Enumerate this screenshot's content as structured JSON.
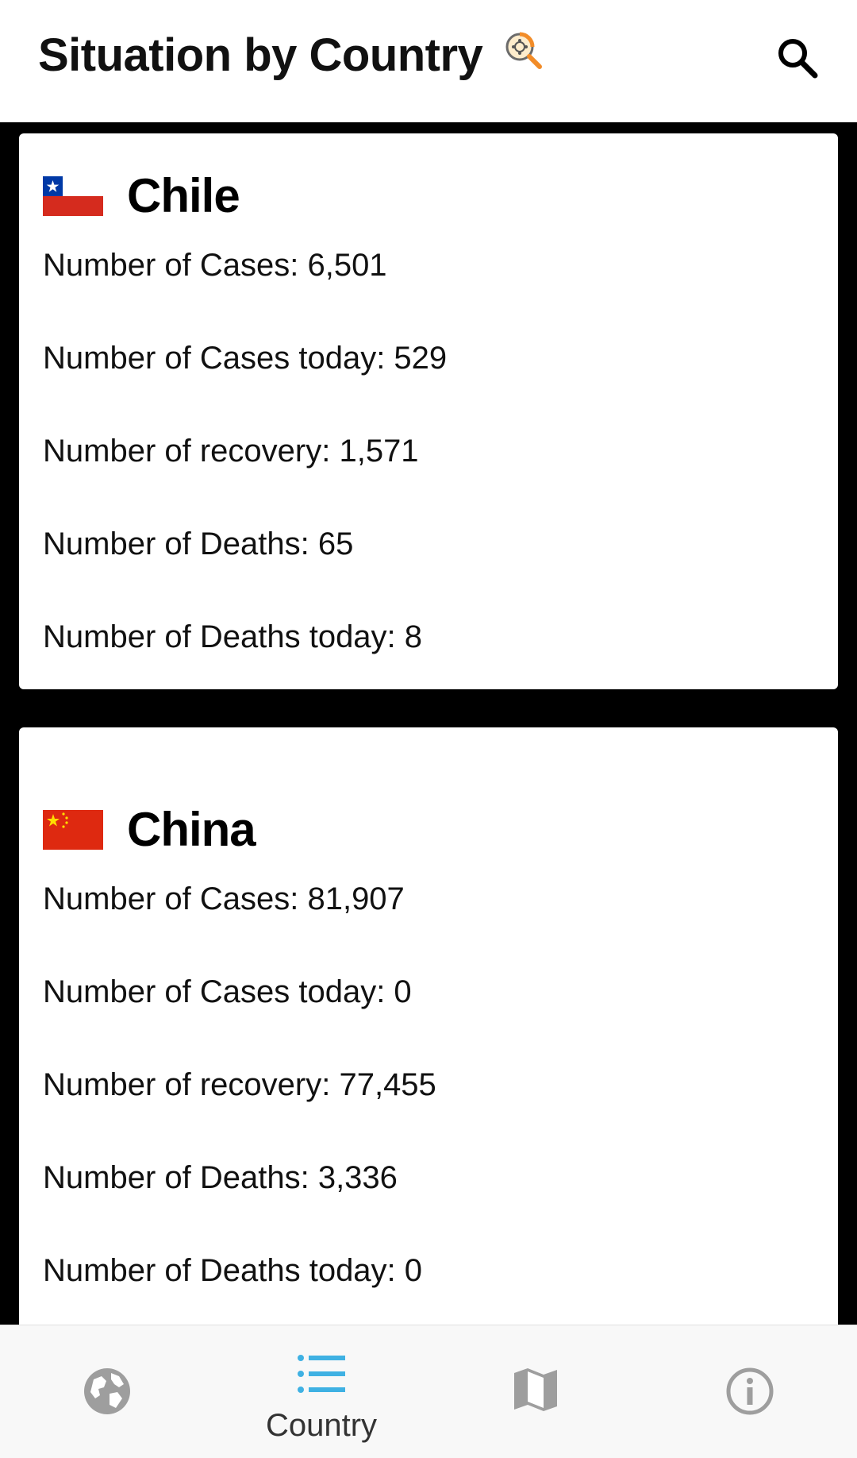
{
  "app_bar": {
    "title": "Situation by Country",
    "logo_icon": "virus-search-logo-icon",
    "search_icon": "search-icon"
  },
  "countries": [
    {
      "name": "Chile",
      "flag_icon": "chile-flag-icon",
      "stats": [
        "Number of Cases: 6,501",
        "Number of Cases today: 529",
        "Number of recovery: 1,571",
        "Number of Deaths: 65",
        "Number of Deaths today: 8"
      ]
    },
    {
      "name": "China",
      "flag_icon": "china-flag-icon",
      "stats": [
        "Number of Cases: 81,907",
        "Number of Cases today: 0",
        "Number of recovery: 77,455",
        "Number of Deaths: 3,336",
        "Number of Deaths today: 0"
      ]
    }
  ],
  "bottom_nav": {
    "items": [
      {
        "icon": "globe-icon",
        "label": ""
      },
      {
        "icon": "list-icon",
        "label": "Country"
      },
      {
        "icon": "map-icon",
        "label": ""
      },
      {
        "icon": "info-icon",
        "label": ""
      }
    ],
    "active_index": 1
  },
  "colors": {
    "active": "#3fb1e3",
    "inactive": "#9e9e9e",
    "background": "#000000",
    "card": "#ffffff"
  }
}
